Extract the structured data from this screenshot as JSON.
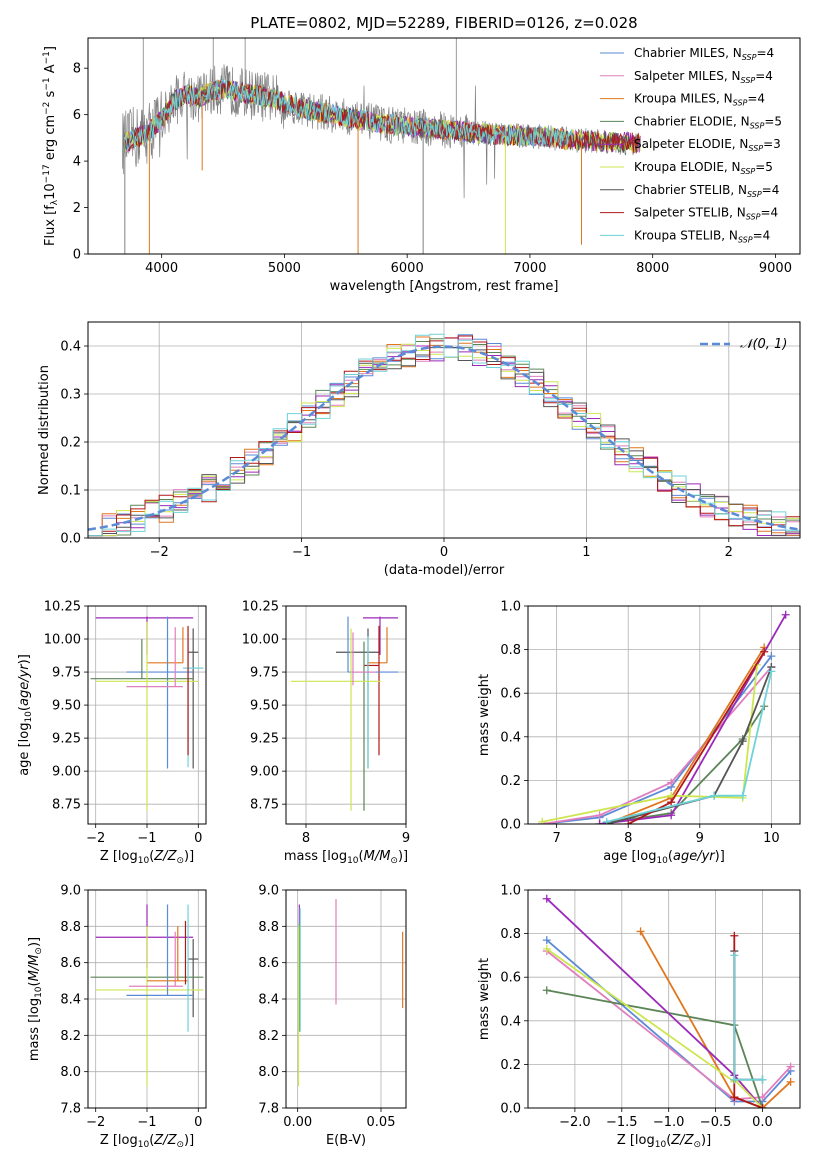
{
  "figure_title": "PLATE=0802, MJD=52289, FIBERID=0126, z=0.028",
  "colors": {
    "Chabrier MILES": "#5b8ad6",
    "Salpeter MILES": "#e07fbe",
    "Kroupa MILES": "#e0771e",
    "Chabrier ELODIE": "#5c8557",
    "Salpeter ELODIE": "#9b2ab8",
    "Kroupa ELODIE": "#cde650",
    "Chabrier STELIB": "#555555",
    "Salpeter STELIB": "#b01818",
    "Kroupa STELIB": "#6fd2d8",
    "data": "#808080",
    "normal": "#5b8ad6"
  },
  "chart_data": [
    {
      "id": "spectrum",
      "type": "line",
      "xlabel": "wavelength [Angstrom, rest frame]",
      "ylabel": "Flux [f_λ 10^-17 erg cm^-2 s^-1 A^-1]",
      "xlim": [
        3400,
        9200
      ],
      "ylim": [
        0,
        9.3
      ],
      "xticks": [
        4000,
        5000,
        6000,
        7000,
        8000,
        9000
      ],
      "yticks": [
        0,
        2,
        4,
        6,
        8
      ],
      "grid": false,
      "legend_position": "top-right",
      "legend": [
        {
          "name": "Chabrier MILES",
          "n_ssp": "4"
        },
        {
          "name": "Salpeter MILES",
          "n_ssp": "4"
        },
        {
          "name": "Kroupa MILES",
          "n_ssp": "4"
        },
        {
          "name": "Chabrier ELODIE",
          "n_ssp": "5"
        },
        {
          "name": "Salpeter ELODIE",
          "n_ssp": "3"
        },
        {
          "name": "Kroupa ELODIE",
          "n_ssp": "5"
        },
        {
          "name": "Chabrier STELIB",
          "n_ssp": "4"
        },
        {
          "name": "Salpeter STELIB",
          "n_ssp": "4"
        },
        {
          "name": "Kroupa STELIB",
          "n_ssp": "4"
        }
      ],
      "model_curve": [
        [
          3700,
          4.8
        ],
        [
          3800,
          5.0
        ],
        [
          3900,
          5.3
        ],
        [
          4000,
          5.8
        ],
        [
          4100,
          6.6
        ],
        [
          4200,
          6.9
        ],
        [
          4300,
          6.7
        ],
        [
          4400,
          7.0
        ],
        [
          4500,
          7.1
        ],
        [
          4600,
          7.0
        ],
        [
          4700,
          6.9
        ],
        [
          4800,
          6.8
        ],
        [
          4900,
          6.7
        ],
        [
          5000,
          6.5
        ],
        [
          5200,
          6.2
        ],
        [
          5400,
          6.0
        ],
        [
          5600,
          5.8
        ],
        [
          5800,
          5.6
        ],
        [
          6000,
          5.5
        ],
        [
          6200,
          5.4
        ],
        [
          6400,
          5.3
        ],
        [
          6600,
          5.2
        ],
        [
          6800,
          5.1
        ],
        [
          7000,
          5.1
        ],
        [
          7200,
          5.0
        ],
        [
          7400,
          4.9
        ],
        [
          7600,
          4.85
        ],
        [
          7800,
          4.8
        ],
        [
          8000,
          4.7
        ],
        [
          8200,
          4.65
        ],
        [
          8400,
          4.6
        ],
        [
          8600,
          4.55
        ],
        [
          8800,
          4.5
        ],
        [
          9000,
          4.45
        ],
        [
          9200,
          4.4
        ]
      ]
    },
    {
      "id": "residuals",
      "type": "histogram",
      "xlabel": "(data-model)/error",
      "ylabel": "Normed distribution",
      "xlim": [
        -2.5,
        2.5
      ],
      "ylim": [
        0,
        0.45
      ],
      "xticks": [
        -2,
        -1,
        0,
        1,
        2
      ],
      "yticks": [
        0.0,
        0.1,
        0.2,
        0.3,
        0.4
      ],
      "grid": true,
      "legend_position": "top-right",
      "legend": [
        "𝒩(0, 1)"
      ],
      "normal_mean": 0,
      "normal_sigma": 1
    },
    {
      "id": "age-vs-Z",
      "type": "errorbar",
      "xlabel": "Z [log10(Z/Z☉)]",
      "ylabel": "age [log10(age/yr)]",
      "xlim": [
        -2.15,
        0.15
      ],
      "ylim": [
        8.6,
        10.25
      ],
      "xticks": [
        -2,
        -1,
        0
      ],
      "yticks": [
        8.75,
        9.0,
        9.25,
        9.5,
        9.75,
        10.0,
        10.25
      ],
      "grid": true,
      "points": [
        {
          "series": "Salpeter ELODIE",
          "x": -1.0,
          "xerr": [
            1.0,
            0.9
          ],
          "y": 10.16,
          "yerr": [
            0.28,
            0.01
          ]
        },
        {
          "series": "Kroupa MILES",
          "x": -0.3,
          "xerr": [
            0.7,
            0.0
          ],
          "y": 9.82,
          "yerr": [
            0.0,
            0.27
          ]
        },
        {
          "series": "Chabrier STELIB",
          "x": -0.1,
          "xerr": [
            0.1,
            0.1
          ],
          "y": 9.9,
          "yerr": [
            0.88,
            0.18
          ]
        },
        {
          "series": "Kroupa STELIB",
          "x": -0.2,
          "xerr": [
            0.1,
            0.3
          ],
          "y": 9.78,
          "yerr": [
            0.75,
            0.22
          ]
        },
        {
          "series": "Chabrier MILES",
          "x": -0.6,
          "xerr": [
            0.8,
            0.5
          ],
          "y": 9.75,
          "yerr": [
            0.73,
            0.42
          ]
        },
        {
          "series": "Chabrier ELODIE",
          "x": -1.1,
          "xerr": [
            1.0,
            1.0
          ],
          "y": 9.7,
          "yerr": [
            0.0,
            0.3
          ]
        },
        {
          "series": "Kroupa ELODIE",
          "x": -1.0,
          "xerr": [
            1.0,
            1.0
          ],
          "y": 9.68,
          "yerr": [
            0.98,
            0.45
          ]
        },
        {
          "series": "Salpeter MILES",
          "x": -0.45,
          "xerr": [
            0.95,
            0.15
          ],
          "y": 9.64,
          "yerr": [
            0.0,
            0.45
          ]
        },
        {
          "series": "Salpeter STELIB",
          "x": -0.2,
          "xerr": [
            0.0,
            0.0
          ],
          "y": 9.7,
          "yerr": [
            0.58,
            0.4
          ]
        }
      ]
    },
    {
      "id": "age-vs-mass",
      "type": "errorbar",
      "xlabel": "mass [log10(M/M☉)]",
      "ylabel": "",
      "xlim": [
        7.8,
        9.0
      ],
      "ylim": [
        8.6,
        10.25
      ],
      "xticks": [
        8,
        9
      ],
      "yticks": [
        8.75,
        9.0,
        9.25,
        9.5,
        9.75,
        10.0,
        10.25
      ],
      "grid": true,
      "points": [
        {
          "series": "Salpeter ELODIE",
          "x": 8.74,
          "xerr": [
            0.17,
            0.18
          ],
          "y": 10.16,
          "yerr": [
            0.28,
            0.01
          ]
        },
        {
          "series": "Chabrier STELIB",
          "x": 8.62,
          "xerr": [
            0.32,
            0.11
          ],
          "y": 9.9,
          "yerr": [
            0.88,
            0.18
          ]
        },
        {
          "series": "Kroupa MILES",
          "x": 8.81,
          "xerr": [
            0.2,
            0.0
          ],
          "y": 9.82,
          "yerr": [
            0.0,
            0.27
          ]
        },
        {
          "series": "Salpeter STELIB",
          "x": 8.73,
          "xerr": [
            0.15,
            0.0
          ],
          "y": 9.8,
          "yerr": [
            0.68,
            0.3
          ]
        },
        {
          "series": "Kroupa STELIB",
          "x": 8.62,
          "xerr": [
            0.0,
            0.0
          ],
          "y": 9.72,
          "yerr": [
            0.7,
            0.3
          ]
        },
        {
          "series": "Chabrier MILES",
          "x": 8.42,
          "xerr": [
            0.0,
            0.5
          ],
          "y": 9.75,
          "yerr": [
            0.0,
            0.42
          ]
        },
        {
          "series": "Chabrier ELODIE",
          "x": 8.58,
          "xerr": [
            0.0,
            0.0
          ],
          "y": 9.9,
          "yerr": [
            1.2,
            0.08
          ]
        },
        {
          "series": "Kroupa ELODIE",
          "x": 8.45,
          "xerr": [
            0.6,
            0.3
          ],
          "y": 9.68,
          "yerr": [
            0.98,
            0.4
          ]
        },
        {
          "series": "Salpeter MILES",
          "x": 8.47,
          "xerr": [
            0.0,
            0.23
          ],
          "y": 9.75,
          "yerr": [
            0.1,
            0.3
          ]
        }
      ]
    },
    {
      "id": "massweight-vs-age",
      "type": "line",
      "xlabel": "age [log10(age/yr)]",
      "ylabel": "mass weight",
      "xlim": [
        6.6,
        10.4
      ],
      "ylim": [
        0.0,
        1.0
      ],
      "xticks": [
        7,
        8,
        9,
        10
      ],
      "yticks": [
        0.0,
        0.2,
        0.4,
        0.6,
        0.8,
        1.0
      ],
      "grid": true,
      "series": [
        {
          "name": "Chabrier MILES",
          "x": [
            6.8,
            7.6,
            8.6,
            10.0
          ],
          "y": [
            0.0,
            0.03,
            0.17,
            0.77
          ]
        },
        {
          "name": "Salpeter MILES",
          "x": [
            6.8,
            7.6,
            8.6,
            10.0
          ],
          "y": [
            0.0,
            0.04,
            0.19,
            0.72
          ]
        },
        {
          "name": "Kroupa MILES",
          "x": [
            7.7,
            8.6,
            9.9
          ],
          "y": [
            0.0,
            0.12,
            0.81
          ]
        },
        {
          "name": "Chabrier ELODIE",
          "x": [
            7.6,
            8.6,
            9.6,
            9.9
          ],
          "y": [
            0.0,
            0.05,
            0.39,
            0.54
          ]
        },
        {
          "name": "Salpeter ELODIE",
          "x": [
            7.6,
            8.6,
            10.2
          ],
          "y": [
            0.0,
            0.04,
            0.96
          ]
        },
        {
          "name": "Kroupa ELODIE",
          "x": [
            6.8,
            8.6,
            9.6,
            9.8
          ],
          "y": [
            0.01,
            0.13,
            0.12,
            0.73
          ]
        },
        {
          "name": "Chabrier STELIB",
          "x": [
            7.7,
            9.2,
            9.6,
            10.0
          ],
          "y": [
            0.0,
            0.13,
            0.38,
            0.72
          ]
        },
        {
          "name": "Salpeter STELIB",
          "x": [
            8.0,
            8.6,
            9.9
          ],
          "y": [
            0.0,
            0.1,
            0.79
          ]
        },
        {
          "name": "Kroupa STELIB",
          "x": [
            7.7,
            9.2,
            9.6,
            10.0
          ],
          "y": [
            0.01,
            0.13,
            0.13,
            0.7
          ]
        }
      ]
    },
    {
      "id": "mass-vs-Z",
      "type": "errorbar",
      "xlabel": "Z [log10(Z/Z☉)]",
      "ylabel": "mass [log10(M/M☉)]",
      "xlim": [
        -2.15,
        0.15
      ],
      "ylim": [
        7.8,
        9.0
      ],
      "xticks": [
        -2,
        -1,
        0
      ],
      "yticks": [
        7.8,
        8.0,
        8.2,
        8.4,
        8.6,
        8.8,
        9.0
      ],
      "grid": true,
      "points": [
        {
          "series": "Salpeter ELODIE",
          "x": -1.0,
          "xerr": [
            1.0,
            0.9
          ],
          "y": 8.74,
          "yerr": [
            0.17,
            0.18
          ]
        },
        {
          "series": "Chabrier STELIB",
          "x": -0.1,
          "xerr": [
            0.1,
            0.1
          ],
          "y": 8.62,
          "yerr": [
            0.32,
            0.11
          ]
        },
        {
          "series": "Chabrier ELODIE",
          "x": -1.1,
          "xerr": [
            1.0,
            1.2
          ],
          "y": 8.52,
          "yerr": [
            0.0,
            0.0
          ]
        },
        {
          "series": "Kroupa ELODIE",
          "x": -1.0,
          "xerr": [
            1.0,
            1.1
          ],
          "y": 8.45,
          "yerr": [
            0.53,
            0.35
          ]
        },
        {
          "series": "Chabrier MILES",
          "x": -0.6,
          "xerr": [
            0.8,
            0.5
          ],
          "y": 8.42,
          "yerr": [
            0.0,
            0.5
          ]
        },
        {
          "series": "Salpeter MILES",
          "x": -0.45,
          "xerr": [
            0.9,
            0.15
          ],
          "y": 8.47,
          "yerr": [
            0.0,
            0.3
          ]
        },
        {
          "series": "Kroupa MILES",
          "x": -0.4,
          "xerr": [
            0.6,
            0.2
          ],
          "y": 8.5,
          "yerr": [
            0.0,
            0.3
          ]
        },
        {
          "series": "Kroupa STELIB",
          "x": -0.2,
          "xerr": [
            0.0,
            0.0
          ],
          "y": 8.62,
          "yerr": [
            0.4,
            0.3
          ]
        },
        {
          "series": "Salpeter STELIB",
          "x": -0.25,
          "xerr": [
            0.0,
            0.0
          ],
          "y": 8.73,
          "yerr": [
            0.25,
            0.1
          ]
        }
      ]
    },
    {
      "id": "mass-vs-ebv",
      "type": "errorbar",
      "xlabel": "E(B-V)",
      "ylabel": "",
      "xlim": [
        -0.007,
        0.065
      ],
      "ylim": [
        7.8,
        9.0
      ],
      "xticks": [
        0.0,
        0.05
      ],
      "yticks": [
        7.8,
        8.0,
        8.2,
        8.4,
        8.6,
        8.8,
        9.0
      ],
      "grid": true,
      "points": [
        {
          "series": "Salpeter ELODIE",
          "x": 0.001,
          "xerr": [
            0,
            0
          ],
          "y": 8.74,
          "yerr": [
            0.17,
            0.18
          ]
        },
        {
          "series": "Chabrier ELODIE",
          "x": 0.001,
          "xerr": [
            0,
            0
          ],
          "y": 8.52,
          "yerr": [
            0.3,
            0.3
          ]
        },
        {
          "series": "Kroupa ELODIE",
          "x": 0.0005,
          "xerr": [
            0,
            0
          ],
          "y": 8.45,
          "yerr": [
            0.53,
            0.35
          ]
        },
        {
          "series": "Kroupa STELIB",
          "x": 0.0015,
          "xerr": [
            0,
            0
          ],
          "y": 8.6,
          "yerr": [
            0.38,
            0.3
          ]
        },
        {
          "series": "Salpeter MILES",
          "x": 0.023,
          "xerr": [
            0,
            0
          ],
          "y": 8.65,
          "yerr": [
            0.28,
            0.3
          ]
        },
        {
          "series": "Kroupa MILES",
          "x": 0.063,
          "xerr": [
            0,
            0
          ],
          "y": 8.55,
          "yerr": [
            0.2,
            0.22
          ]
        }
      ]
    },
    {
      "id": "massweight-vs-Z",
      "type": "line",
      "xlabel": "Z [log10(Z/Z☉)]",
      "ylabel": "mass weight",
      "xlim": [
        -2.5,
        0.4
      ],
      "ylim": [
        0.0,
        1.0
      ],
      "xticks": [
        -2.0,
        -1.5,
        -1.0,
        -0.5,
        0.0
      ],
      "yticks": [
        0.0,
        0.2,
        0.4,
        0.6,
        0.8,
        1.0
      ],
      "grid": true,
      "series": [
        {
          "name": "Chabrier MILES",
          "x": [
            -2.3,
            -0.3,
            0.0,
            0.3
          ],
          "y": [
            0.77,
            0.03,
            0.03,
            0.17
          ]
        },
        {
          "name": "Salpeter MILES",
          "x": [
            -2.3,
            -0.3,
            0.0,
            0.3
          ],
          "y": [
            0.72,
            0.04,
            0.05,
            0.19
          ]
        },
        {
          "name": "Kroupa MILES",
          "x": [
            -1.3,
            -0.3,
            0.0,
            0.3
          ],
          "y": [
            0.81,
            0.05,
            0.0,
            0.12
          ]
        },
        {
          "name": "Chabrier ELODIE",
          "x": [
            -2.3,
            -0.3,
            0.0
          ],
          "y": [
            0.54,
            0.38,
            0.0
          ]
        },
        {
          "name": "Salpeter ELODIE",
          "x": [
            -2.3,
            -0.3,
            0.0
          ],
          "y": [
            0.96,
            0.15,
            0.0
          ]
        },
        {
          "name": "Kroupa ELODIE",
          "x": [
            -2.3,
            -0.3,
            -0.3,
            0.0
          ],
          "y": [
            0.73,
            0.12,
            0.13,
            0.0
          ]
        },
        {
          "name": "Chabrier STELIB",
          "x": [
            -0.3,
            -0.3,
            0.0
          ],
          "y": [
            0.72,
            0.13,
            0.13
          ]
        },
        {
          "name": "Salpeter STELIB",
          "x": [
            -0.3,
            -0.3,
            0.0
          ],
          "y": [
            0.79,
            0.05,
            0.0
          ]
        },
        {
          "name": "Kroupa STELIB",
          "x": [
            -0.3,
            -0.3,
            0.0
          ],
          "y": [
            0.7,
            0.13,
            0.13
          ]
        }
      ]
    }
  ]
}
